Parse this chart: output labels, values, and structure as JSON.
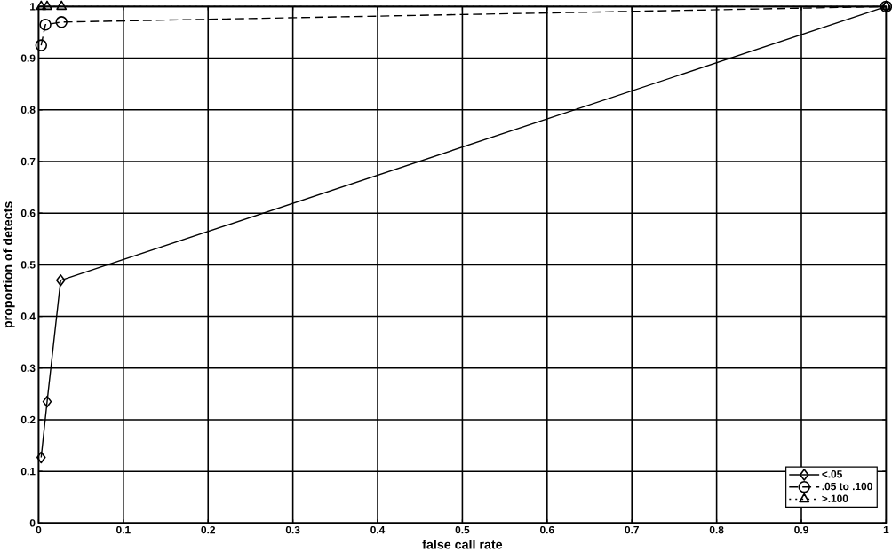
{
  "chart_data": {
    "type": "line",
    "xlabel": "false call rate",
    "ylabel": "proportion of detects",
    "xlim": [
      0,
      1
    ],
    "ylim": [
      0,
      1
    ],
    "xticks": [
      0,
      0.1,
      0.2,
      0.3,
      0.4,
      0.5,
      0.6,
      0.7,
      0.8,
      0.9,
      1
    ],
    "yticks": [
      0,
      0.1,
      0.2,
      0.3,
      0.4,
      0.5,
      0.6,
      0.7,
      0.8,
      0.9,
      1
    ],
    "grid": true,
    "legend": "bottom right",
    "series": [
      {
        "name": "<.05",
        "color": "#000000",
        "marker": "diamond",
        "line_style": "solid",
        "x": [
          0.003,
          0.01,
          0.026,
          1
        ],
        "values": [
          0.127,
          0.235,
          0.47,
          1
        ]
      },
      {
        "name": ".05 to .100",
        "color": "#000000",
        "marker": "circle",
        "line_style": "dashed",
        "x": [
          0.003,
          0.008,
          0.027,
          1
        ],
        "values": [
          0.925,
          0.965,
          0.97,
          1
        ]
      },
      {
        "name": ">.100",
        "color": "#000000",
        "marker": "triangle",
        "line_style": "dotted",
        "x": [
          0.003,
          0.01,
          0.027,
          1
        ],
        "values": [
          1,
          1,
          1,
          1
        ]
      }
    ]
  }
}
